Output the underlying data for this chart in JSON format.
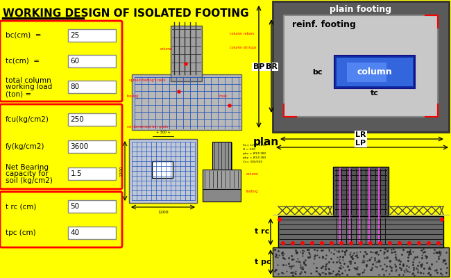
{
  "title": "WORKING DESIGN OF ISOLATED FOOTING",
  "bg_color": "#FFFF00",
  "box1_fields": [
    "bc(cm)  =",
    "tc(cm)  =",
    "total column\nworking load\n(ton) ="
  ],
  "box1_values": [
    "25",
    "60",
    "80"
  ],
  "box2_fields": [
    "fcu(kg/cm2)",
    "fy(kg/cm2)",
    "Net Bearing\ncapacity for\nsoil (kg/cm2)"
  ],
  "box2_values": [
    "250",
    "3600",
    "1.5"
  ],
  "box3_fields": [
    "t rc (cm)",
    "tpc (cm)"
  ],
  "box3_values": [
    "50",
    "40"
  ],
  "plan_texts": [
    "plain footing",
    "reinf. footing",
    "bc",
    "column",
    "tc"
  ],
  "bp_br": [
    "BP",
    "BR"
  ],
  "lr_lp": [
    "LR",
    "LP"
  ],
  "plan_label": "plan",
  "trc_label": "t rc",
  "tpc_label": "t pc"
}
